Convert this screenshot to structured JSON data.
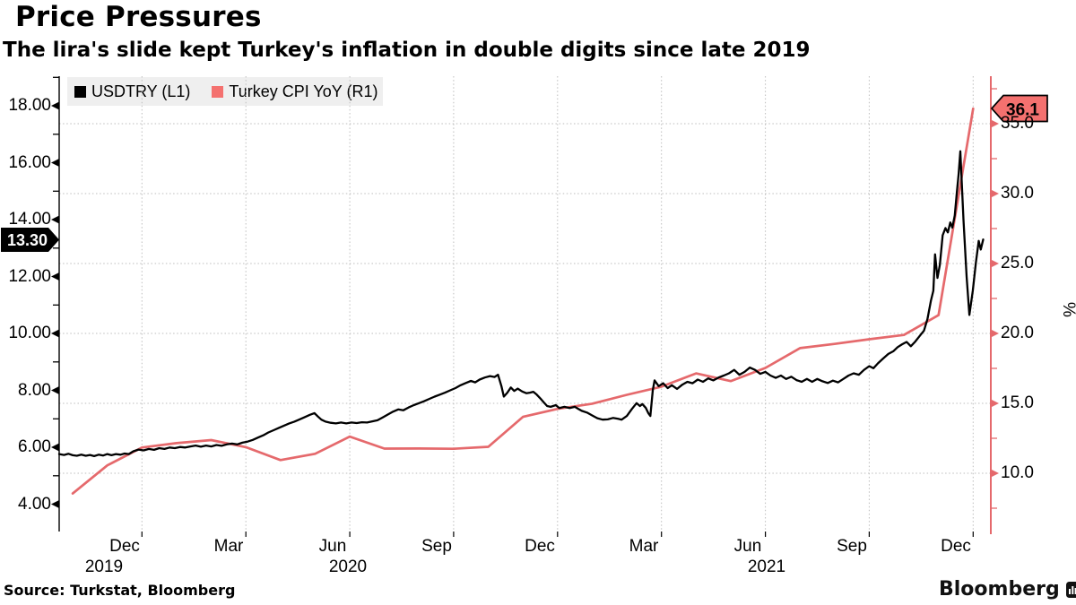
{
  "header": {
    "title": "Price Pressures",
    "subtitle": "The lira's slide kept Turkey's inflation in double digits since late 2019"
  },
  "legend": {
    "items": [
      {
        "label": "USDTRY (L1)",
        "color": "#000000"
      },
      {
        "label": "Turkey CPI YoY (R1)",
        "color": "#f4716f"
      }
    ]
  },
  "footer": {
    "source": "Source: Turkstat, Bloomberg",
    "brand": "Bloomberg"
  },
  "colors": {
    "red_line": "#e5696c",
    "tag_red_fill": "#f4716f",
    "grid": "#bdbdbd",
    "legend_bg": "#efefef"
  },
  "chart_data": {
    "type": "line",
    "title": "Price Pressures",
    "subtitle": "The lira's slide kept Turkey's inflation in double digits since late 2019",
    "x_axis": {
      "unit": "months since 2019-12-15",
      "range": [
        -1.89,
        25.01
      ],
      "tick_labels": [
        {
          "t": 0,
          "label": "Dec"
        },
        {
          "t": 3,
          "label": "Mar"
        },
        {
          "t": 6,
          "label": "Jun"
        },
        {
          "t": 9,
          "label": "Sep"
        },
        {
          "t": 12,
          "label": "Dec"
        },
        {
          "t": 15,
          "label": "Mar"
        },
        {
          "t": 18,
          "label": "Jun"
        },
        {
          "t": 21,
          "label": "Sep"
        },
        {
          "t": 24,
          "label": "Dec"
        }
      ],
      "year_labels": [
        {
          "t": -0.59,
          "label": "2019"
        },
        {
          "t": 6.45,
          "label": "2020"
        },
        {
          "t": 18.55,
          "label": "2021"
        }
      ],
      "gridlines_t": [
        0.5,
        3.5,
        6.5,
        9.5,
        12.5,
        15.5,
        18.5,
        21.5,
        24.5
      ]
    },
    "left_axis": {
      "series": "USDTRY",
      "range": [
        3.04,
        19.04
      ],
      "major_ticks": [
        {
          "v": 4,
          "label": "4.00"
        },
        {
          "v": 6,
          "label": "6.00"
        },
        {
          "v": 8,
          "label": "8.00"
        },
        {
          "v": 10,
          "label": "10.00"
        },
        {
          "v": 12,
          "label": "12.00"
        },
        {
          "v": 14,
          "label": "14.00"
        },
        {
          "v": 16,
          "label": "16.00"
        },
        {
          "v": 18,
          "label": "18.00"
        }
      ],
      "minor_ticks": [
        5,
        7,
        9,
        11,
        13,
        15,
        17,
        19
      ],
      "last_value": 13.3,
      "last_label": "13.30"
    },
    "right_axis": {
      "series": "Turkey CPI YoY",
      "unit": "%",
      "range": [
        5.83,
        38.4
      ],
      "major_ticks": [
        {
          "v": 10,
          "label": "10.0"
        },
        {
          "v": 15,
          "label": "15.0"
        },
        {
          "v": 20,
          "label": "20.0"
        },
        {
          "v": 25,
          "label": "25.0"
        },
        {
          "v": 30,
          "label": "30.0"
        },
        {
          "v": 35,
          "label": "35.0"
        }
      ],
      "minor_ticks": [
        7.5,
        12.5,
        17.5,
        22.5,
        27.5,
        32.5,
        37.5
      ],
      "last_value": 36.1,
      "last_label": "36.1"
    },
    "series": [
      {
        "name": "Turkey CPI YoY (R1)",
        "axis": "right",
        "color": "#e5696c",
        "width": 2.7,
        "points": [
          [
            -1.5,
            8.55
          ],
          [
            -0.5,
            10.56
          ],
          [
            0.5,
            11.84
          ],
          [
            1.5,
            12.15
          ],
          [
            2.5,
            12.37
          ],
          [
            3.5,
            11.86
          ],
          [
            4.5,
            10.94
          ],
          [
            5.5,
            11.39
          ],
          [
            6.5,
            12.62
          ],
          [
            7.5,
            11.76
          ],
          [
            8.5,
            11.77
          ],
          [
            9.5,
            11.75
          ],
          [
            10.5,
            11.89
          ],
          [
            11.5,
            14.03
          ],
          [
            12.5,
            14.6
          ],
          [
            13.5,
            14.97
          ],
          [
            14.5,
            15.61
          ],
          [
            15.5,
            16.19
          ],
          [
            16.5,
            17.14
          ],
          [
            17.5,
            16.59
          ],
          [
            18.5,
            17.53
          ],
          [
            19.5,
            18.95
          ],
          [
            20.5,
            19.25
          ],
          [
            21.5,
            19.58
          ],
          [
            22.5,
            19.89
          ],
          [
            23.5,
            21.31
          ],
          [
            24.5,
            36.08
          ]
        ]
      },
      {
        "name": "USDTRY (L1)",
        "axis": "left",
        "color": "#000000",
        "width": 2.3,
        "points": [
          [
            -1.89,
            5.76
          ],
          [
            -1.75,
            5.73
          ],
          [
            -1.62,
            5.77
          ],
          [
            -1.5,
            5.72
          ],
          [
            -1.38,
            5.7
          ],
          [
            -1.25,
            5.74
          ],
          [
            -1.12,
            5.7
          ],
          [
            -1.0,
            5.73
          ],
          [
            -0.88,
            5.69
          ],
          [
            -0.75,
            5.74
          ],
          [
            -0.62,
            5.71
          ],
          [
            -0.5,
            5.76
          ],
          [
            -0.38,
            5.72
          ],
          [
            -0.25,
            5.76
          ],
          [
            -0.12,
            5.74
          ],
          [
            0.0,
            5.78
          ],
          [
            0.12,
            5.76
          ],
          [
            0.25,
            5.86
          ],
          [
            0.4,
            5.92
          ],
          [
            0.55,
            5.89
          ],
          [
            0.7,
            5.94
          ],
          [
            0.85,
            5.91
          ],
          [
            1.0,
            5.97
          ],
          [
            1.15,
            5.94
          ],
          [
            1.3,
            5.99
          ],
          [
            1.45,
            5.97
          ],
          [
            1.6,
            6.01
          ],
          [
            1.75,
            5.99
          ],
          [
            1.9,
            6.03
          ],
          [
            2.05,
            6.06
          ],
          [
            2.2,
            6.02
          ],
          [
            2.35,
            6.06
          ],
          [
            2.5,
            6.03
          ],
          [
            2.65,
            6.08
          ],
          [
            2.8,
            6.05
          ],
          [
            2.95,
            6.1
          ],
          [
            3.1,
            6.13
          ],
          [
            3.25,
            6.1
          ],
          [
            3.4,
            6.16
          ],
          [
            3.55,
            6.2
          ],
          [
            3.7,
            6.26
          ],
          [
            3.85,
            6.34
          ],
          [
            4.0,
            6.42
          ],
          [
            4.15,
            6.52
          ],
          [
            4.3,
            6.6
          ],
          [
            4.45,
            6.68
          ],
          [
            4.6,
            6.76
          ],
          [
            4.75,
            6.84
          ],
          [
            4.9,
            6.9
          ],
          [
            5.05,
            6.98
          ],
          [
            5.2,
            7.06
          ],
          [
            5.35,
            7.14
          ],
          [
            5.48,
            7.2
          ],
          [
            5.58,
            7.08
          ],
          [
            5.68,
            6.97
          ],
          [
            5.8,
            6.9
          ],
          [
            5.95,
            6.86
          ],
          [
            6.1,
            6.84
          ],
          [
            6.25,
            6.87
          ],
          [
            6.4,
            6.84
          ],
          [
            6.55,
            6.87
          ],
          [
            6.7,
            6.85
          ],
          [
            6.85,
            6.88
          ],
          [
            7.0,
            6.87
          ],
          [
            7.15,
            6.91
          ],
          [
            7.3,
            6.95
          ],
          [
            7.45,
            7.05
          ],
          [
            7.6,
            7.15
          ],
          [
            7.75,
            7.25
          ],
          [
            7.9,
            7.33
          ],
          [
            8.05,
            7.3
          ],
          [
            8.2,
            7.4
          ],
          [
            8.35,
            7.48
          ],
          [
            8.5,
            7.55
          ],
          [
            8.65,
            7.62
          ],
          [
            8.8,
            7.7
          ],
          [
            8.95,
            7.78
          ],
          [
            9.1,
            7.85
          ],
          [
            9.25,
            7.92
          ],
          [
            9.4,
            8.0
          ],
          [
            9.55,
            8.08
          ],
          [
            9.7,
            8.18
          ],
          [
            9.85,
            8.26
          ],
          [
            10.0,
            8.33
          ],
          [
            10.12,
            8.28
          ],
          [
            10.25,
            8.38
          ],
          [
            10.4,
            8.45
          ],
          [
            10.55,
            8.5
          ],
          [
            10.68,
            8.47
          ],
          [
            10.78,
            8.55
          ],
          [
            10.88,
            8.15
          ],
          [
            10.95,
            7.78
          ],
          [
            11.05,
            7.92
          ],
          [
            11.15,
            8.1
          ],
          [
            11.25,
            7.98
          ],
          [
            11.35,
            8.06
          ],
          [
            11.48,
            7.96
          ],
          [
            11.6,
            7.9
          ],
          [
            11.7,
            7.92
          ],
          [
            11.8,
            7.95
          ],
          [
            11.9,
            7.85
          ],
          [
            12.0,
            7.72
          ],
          [
            12.1,
            7.58
          ],
          [
            12.2,
            7.45
          ],
          [
            12.3,
            7.42
          ],
          [
            12.45,
            7.48
          ],
          [
            12.55,
            7.38
          ],
          [
            12.7,
            7.42
          ],
          [
            12.85,
            7.38
          ],
          [
            13.0,
            7.42
          ],
          [
            13.1,
            7.35
          ],
          [
            13.2,
            7.28
          ],
          [
            13.35,
            7.22
          ],
          [
            13.5,
            7.12
          ],
          [
            13.65,
            7.02
          ],
          [
            13.8,
            6.97
          ],
          [
            13.95,
            6.98
          ],
          [
            14.1,
            7.03
          ],
          [
            14.25,
            7.0
          ],
          [
            14.35,
            6.97
          ],
          [
            14.5,
            7.1
          ],
          [
            14.65,
            7.35
          ],
          [
            14.78,
            7.55
          ],
          [
            14.88,
            7.45
          ],
          [
            14.95,
            7.52
          ],
          [
            15.05,
            7.38
          ],
          [
            15.12,
            7.2
          ],
          [
            15.18,
            7.1
          ],
          [
            15.25,
            8.0
          ],
          [
            15.3,
            8.35
          ],
          [
            15.42,
            8.15
          ],
          [
            15.55,
            8.25
          ],
          [
            15.68,
            8.08
          ],
          [
            15.8,
            8.18
          ],
          [
            15.95,
            8.05
          ],
          [
            16.1,
            8.2
          ],
          [
            16.25,
            8.3
          ],
          [
            16.4,
            8.25
          ],
          [
            16.55,
            8.38
          ],
          [
            16.7,
            8.3
          ],
          [
            16.85,
            8.42
          ],
          [
            17.0,
            8.35
          ],
          [
            17.15,
            8.45
          ],
          [
            17.3,
            8.52
          ],
          [
            17.45,
            8.6
          ],
          [
            17.6,
            8.72
          ],
          [
            17.75,
            8.55
          ],
          [
            17.9,
            8.65
          ],
          [
            18.05,
            8.8
          ],
          [
            18.2,
            8.72
          ],
          [
            18.35,
            8.58
          ],
          [
            18.5,
            8.65
          ],
          [
            18.65,
            8.52
          ],
          [
            18.8,
            8.44
          ],
          [
            18.95,
            8.52
          ],
          [
            19.1,
            8.4
          ],
          [
            19.25,
            8.48
          ],
          [
            19.4,
            8.36
          ],
          [
            19.55,
            8.3
          ],
          [
            19.7,
            8.4
          ],
          [
            19.85,
            8.3
          ],
          [
            20.0,
            8.4
          ],
          [
            20.15,
            8.32
          ],
          [
            20.3,
            8.26
          ],
          [
            20.45,
            8.34
          ],
          [
            20.6,
            8.28
          ],
          [
            20.75,
            8.4
          ],
          [
            20.9,
            8.52
          ],
          [
            21.05,
            8.6
          ],
          [
            21.2,
            8.55
          ],
          [
            21.35,
            8.72
          ],
          [
            21.5,
            8.85
          ],
          [
            21.62,
            8.78
          ],
          [
            21.75,
            8.95
          ],
          [
            21.9,
            9.12
          ],
          [
            22.05,
            9.28
          ],
          [
            22.2,
            9.38
          ],
          [
            22.32,
            9.52
          ],
          [
            22.45,
            9.62
          ],
          [
            22.58,
            9.7
          ],
          [
            22.7,
            9.55
          ],
          [
            22.82,
            9.7
          ],
          [
            22.95,
            9.9
          ],
          [
            23.08,
            10.1
          ],
          [
            23.18,
            10.5
          ],
          [
            23.28,
            11.15
          ],
          [
            23.35,
            11.5
          ],
          [
            23.4,
            12.78
          ],
          [
            23.47,
            11.95
          ],
          [
            23.54,
            12.42
          ],
          [
            23.62,
            13.45
          ],
          [
            23.7,
            13.7
          ],
          [
            23.77,
            13.55
          ],
          [
            23.84,
            13.9
          ],
          [
            23.9,
            13.72
          ],
          [
            23.97,
            14.15
          ],
          [
            24.03,
            14.95
          ],
          [
            24.08,
            15.6
          ],
          [
            24.13,
            16.4
          ],
          [
            24.22,
            14.0
          ],
          [
            24.31,
            12.0
          ],
          [
            24.39,
            10.65
          ],
          [
            24.49,
            11.5
          ],
          [
            24.58,
            12.5
          ],
          [
            24.66,
            13.25
          ],
          [
            24.72,
            12.95
          ],
          [
            24.79,
            13.3
          ]
        ]
      }
    ]
  }
}
